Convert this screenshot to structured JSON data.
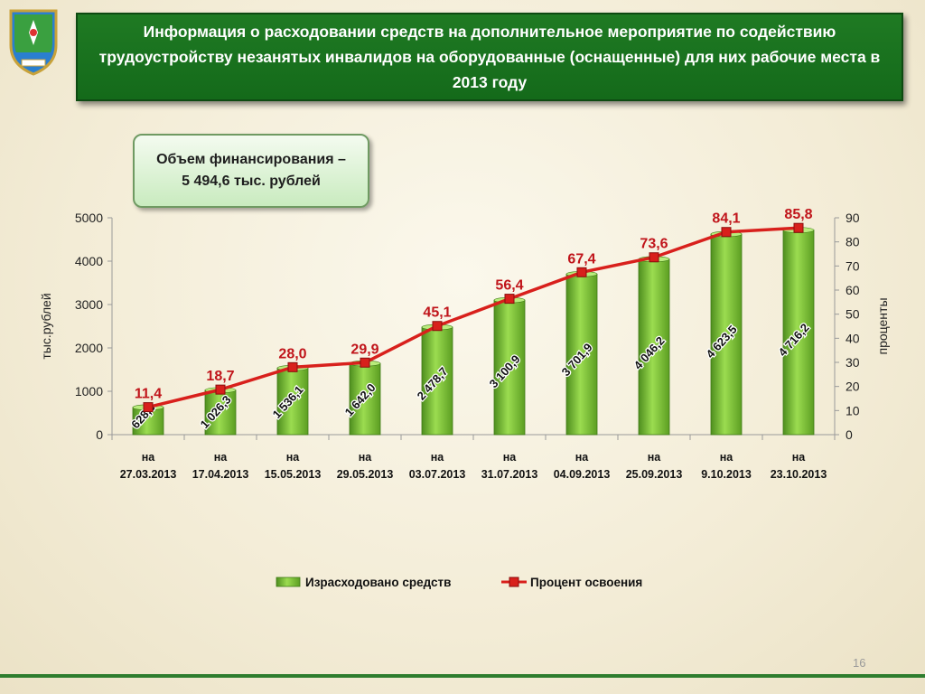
{
  "header": {
    "title": "Информация о расходовании средств  на дополнительное мероприятие по содействию трудоустройству  незанятых инвалидов  на оборудованные (оснащенные) для них рабочие места в 2013 году"
  },
  "funding": {
    "line1": "Объем финансирования –",
    "line2": "5 494,6 тыс. рублей"
  },
  "page_number": "16",
  "colors": {
    "title_bg": "#1a7320",
    "bar_green": "#7cc33b",
    "line_red": "#d8201c",
    "label_red": "#c0141a"
  },
  "chart_data": {
    "type": "bar",
    "categories": [
      "на\n27.03.2013",
      "на\n17.04.2013",
      "на\n15.05.2013",
      "на\n29.05.2013",
      "на\n03.07.2013",
      "на\n31.07.2013",
      "на\n04.09.2013",
      "на\n25.09.2013",
      "на\n9.10.2013",
      "на\n23.10.2013"
    ],
    "series": [
      {
        "name": "Израсходовано  средств",
        "type": "bar",
        "axis": "left",
        "values": [
          628.9,
          1026.3,
          1536.1,
          1642.0,
          2478.7,
          3100.9,
          3701.9,
          4046.2,
          4623.5,
          4716.2
        ],
        "labels": [
          "628,9",
          "1 026,3",
          "1 536,1",
          "1 642,0",
          "2 478,7",
          "3 100,9",
          "3 701,9",
          "4 046,2",
          "4 623,5",
          "4 716,2"
        ]
      },
      {
        "name": "Процент освоения",
        "type": "line",
        "axis": "right",
        "values": [
          11.4,
          18.7,
          28.0,
          29.9,
          45.1,
          56.4,
          67.4,
          73.6,
          84.1,
          85.8
        ],
        "labels": [
          "11,4",
          "18,7",
          "28,0",
          "29,9",
          "45,1",
          "56,4",
          "67,4",
          "73,6",
          "84,1",
          "85,8"
        ]
      }
    ],
    "ylabel_left": "тыс.рублей",
    "ylabel_right": "проценты",
    "ylim_left": [
      0,
      5000
    ],
    "yticks_left": [
      0,
      1000,
      2000,
      3000,
      4000,
      5000
    ],
    "ylim_right": [
      0,
      90
    ],
    "yticks_right": [
      0,
      10,
      20,
      30,
      40,
      50,
      60,
      70,
      80,
      90
    ],
    "grid": false,
    "legend": "bottom"
  }
}
